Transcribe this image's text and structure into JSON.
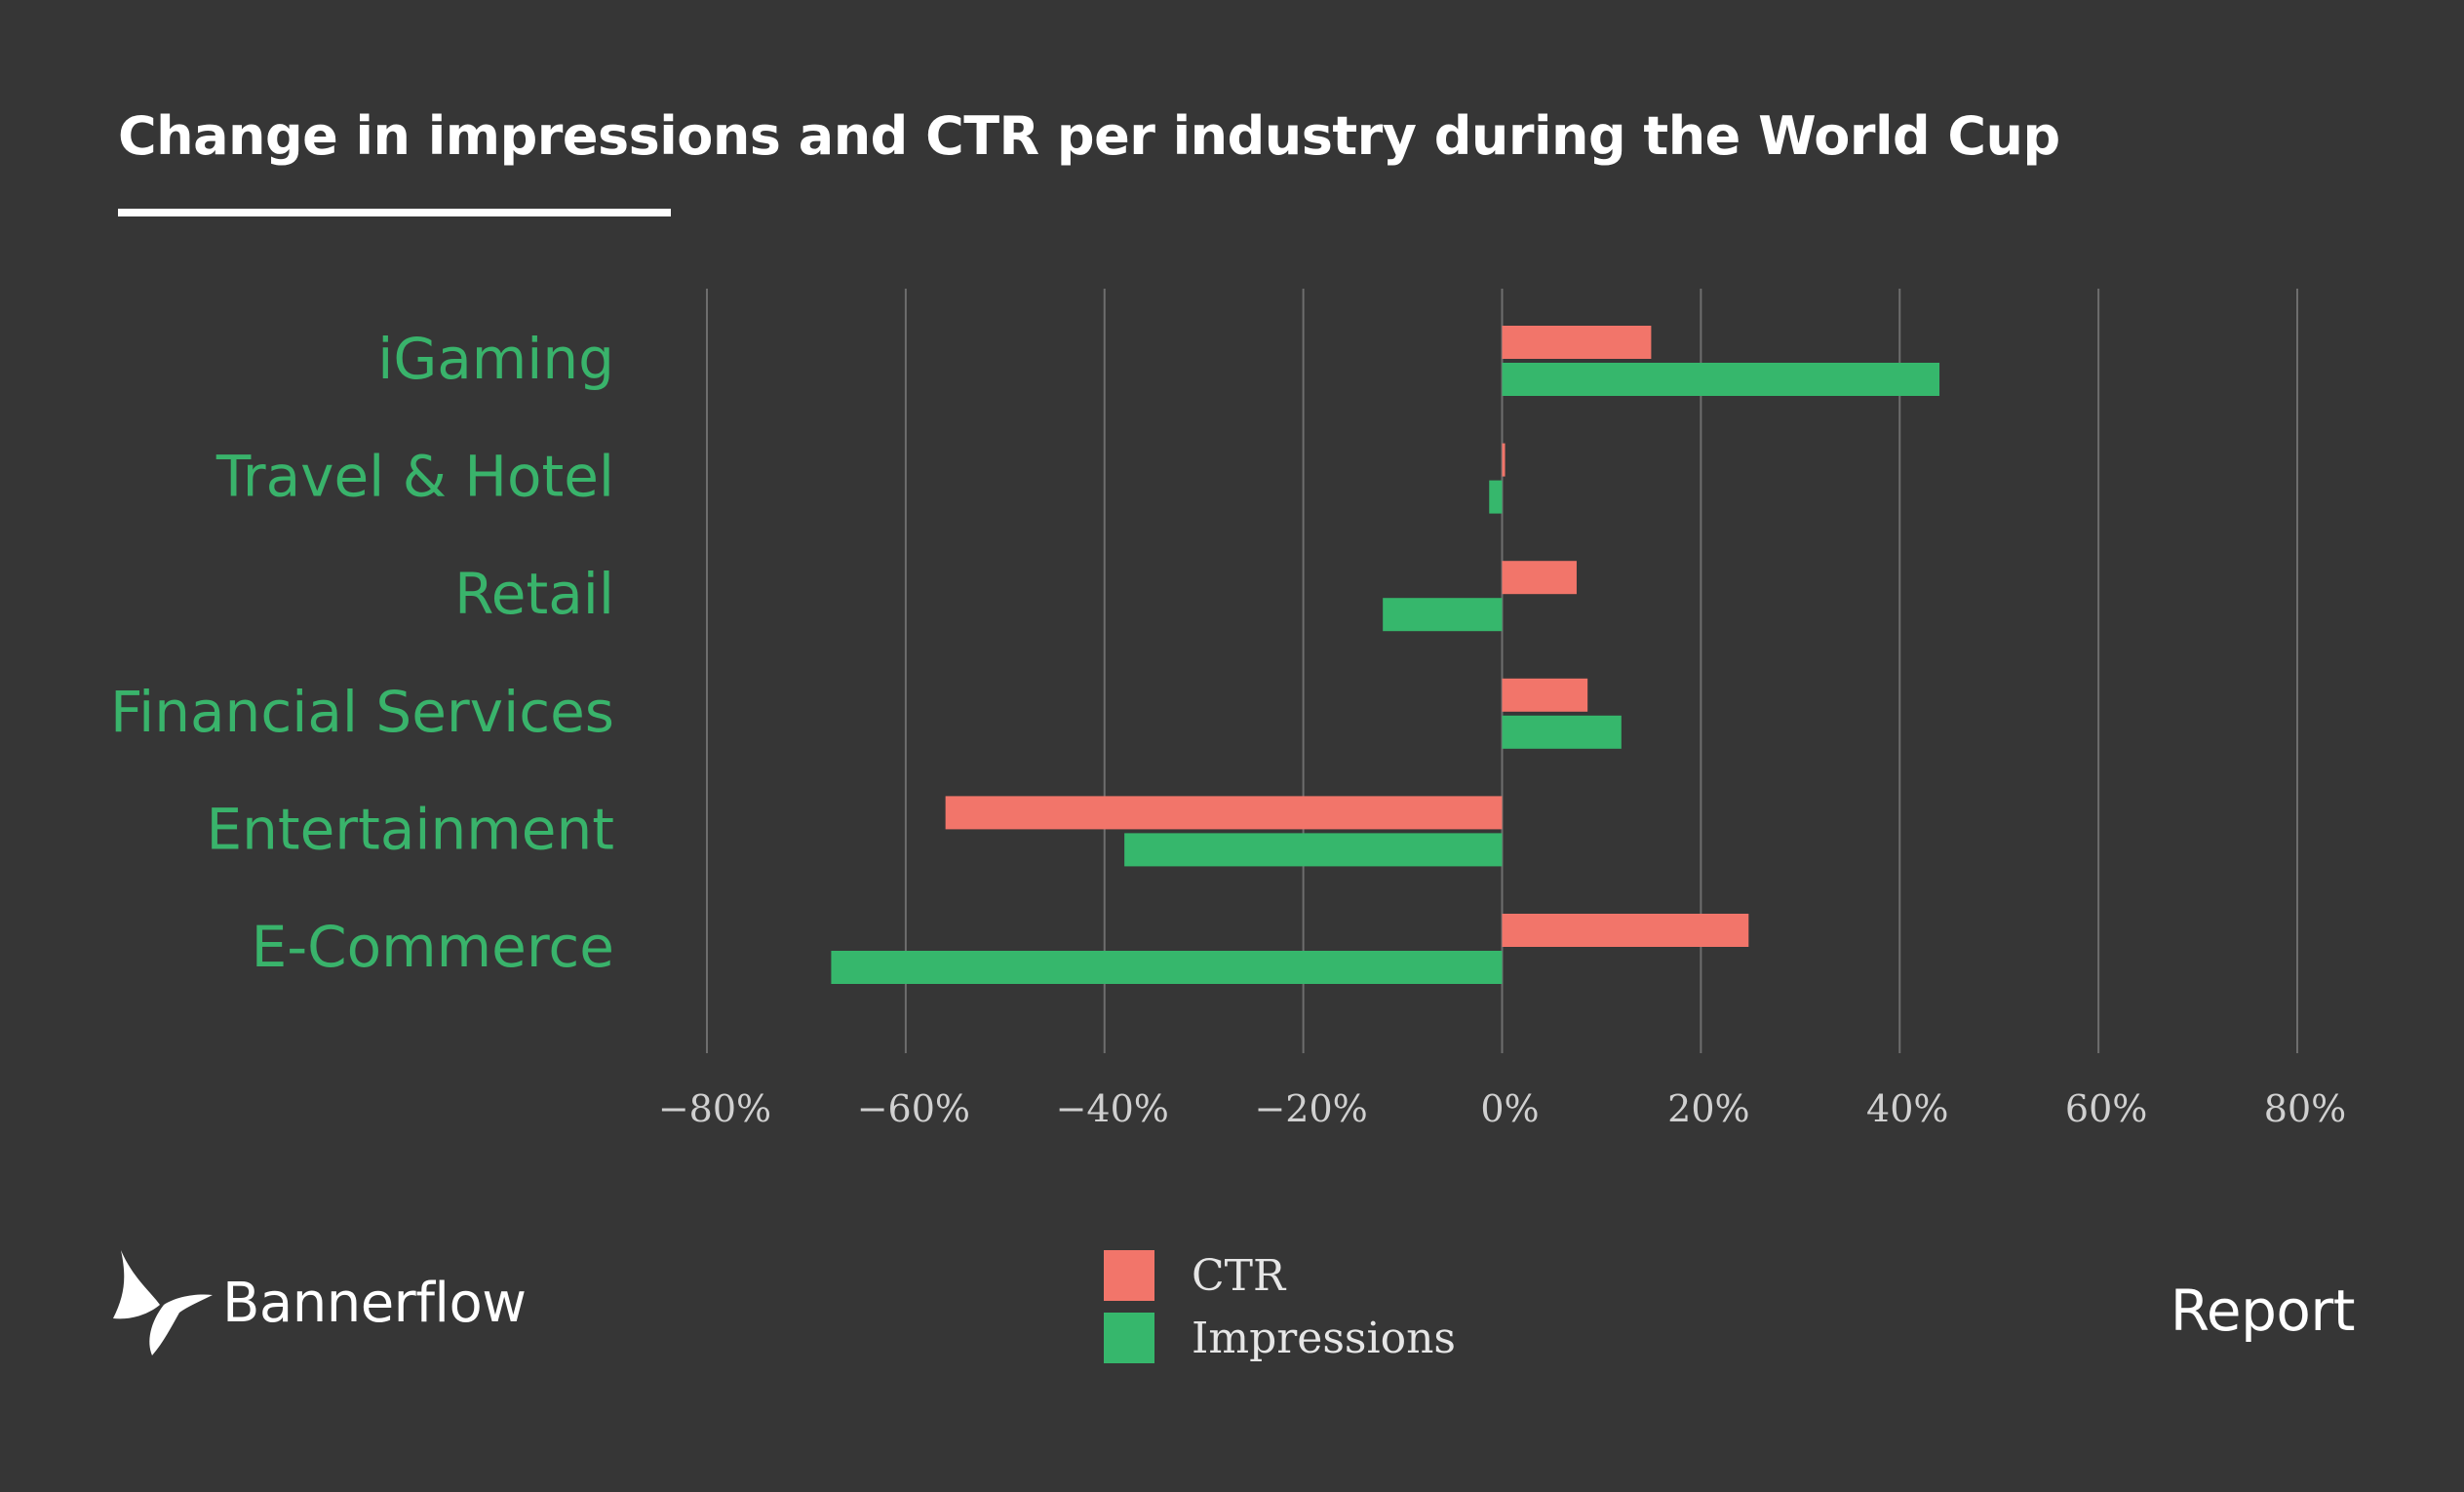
{
  "title": "Change in impressions and CTR per industry during the World Cup",
  "chart_data": {
    "type": "bar",
    "orientation": "horizontal",
    "categories": [
      "iGaming",
      "Travel & Hotel",
      "Retail",
      "Financial Services",
      "Entertainment",
      "E-Commerce"
    ],
    "series": [
      {
        "name": "CTR",
        "color": "#f2756a",
        "values": [
          15,
          0.3,
          7.5,
          8.6,
          -56,
          24.8
        ]
      },
      {
        "name": "Impressions",
        "color": "#36b76c",
        "values": [
          44,
          -1.3,
          -12,
          12,
          -38,
          -67.5
        ]
      }
    ],
    "xlim": [
      -80,
      80
    ],
    "xticks": [
      -80,
      -60,
      -40,
      -20,
      0,
      20,
      40,
      60,
      80
    ],
    "xtick_labels": [
      "−80%",
      "−60%",
      "−40%",
      "−20%",
      "0%",
      "20%",
      "40%",
      "60%",
      "80%"
    ],
    "xlabel": "",
    "ylabel": "",
    "grid": true,
    "legend_position": "bottom"
  },
  "legend": {
    "items": [
      {
        "label": "CTR",
        "color": "#f2756a"
      },
      {
        "label": "Impressions",
        "color": "#36b76c"
      }
    ]
  },
  "brand": {
    "name": "Bannerflow",
    "logo_icon": "butterfly-icon"
  },
  "footer": {
    "report_label": "Report"
  },
  "colors": {
    "background": "#363636",
    "category_text": "#39b36b",
    "tick_text": "#d0d0d0",
    "grid": "#6e6e6e"
  }
}
